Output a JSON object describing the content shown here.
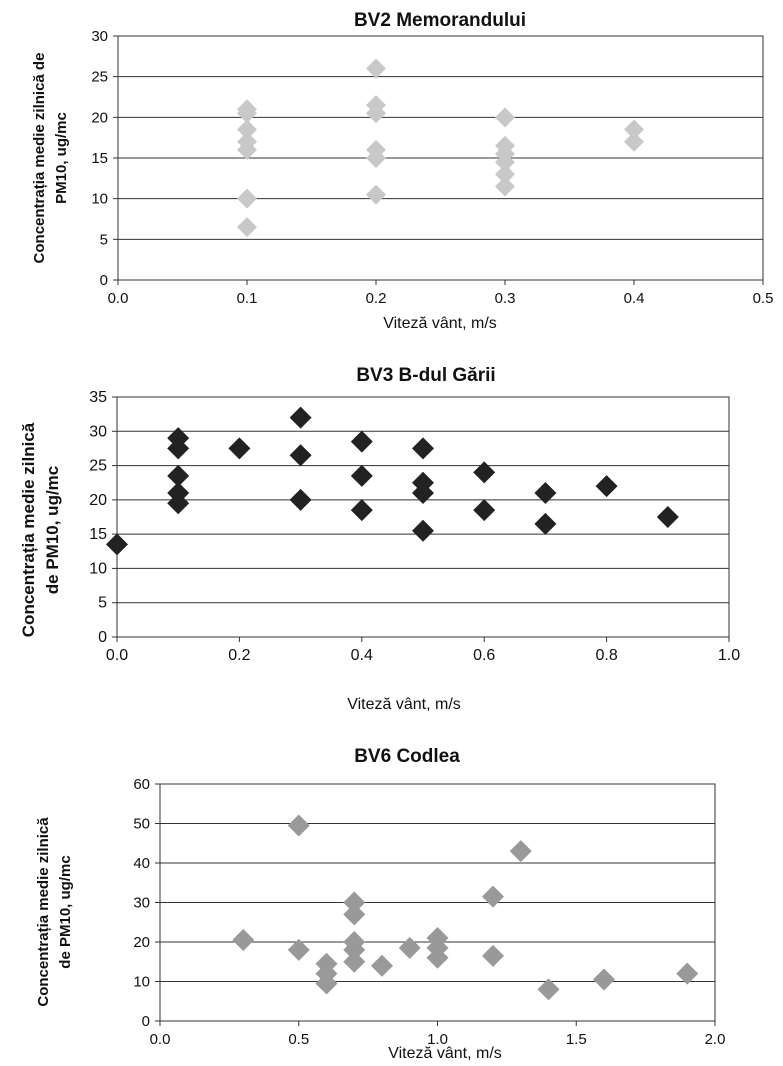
{
  "chart_data": [
    {
      "type": "scatter",
      "title": "BV2 Memorandului",
      "xlabel": "Viteză vânt, m/s",
      "ylabel": "Concentrația medie zilnică de PM10, ug/mc",
      "xlim": [
        0,
        0.5
      ],
      "ylim": [
        0,
        30
      ],
      "xticks": [
        "0.0",
        "0.1",
        "0.2",
        "0.3",
        "0.4",
        "0.5"
      ],
      "yticks": [
        "0",
        "5",
        "10",
        "15",
        "20",
        "25",
        "30"
      ],
      "grid": "horizontal",
      "marker_color": "#c8c8c8",
      "points": [
        [
          0.1,
          6.5
        ],
        [
          0.1,
          10
        ],
        [
          0.1,
          16
        ],
        [
          0.1,
          17
        ],
        [
          0.1,
          18.5
        ],
        [
          0.1,
          20.5
        ],
        [
          0.1,
          21
        ],
        [
          0.2,
          10.5
        ],
        [
          0.2,
          15
        ],
        [
          0.2,
          16
        ],
        [
          0.2,
          20.5
        ],
        [
          0.2,
          21.5
        ],
        [
          0.2,
          26
        ],
        [
          0.3,
          11.5
        ],
        [
          0.3,
          13
        ],
        [
          0.3,
          14.5
        ],
        [
          0.3,
          15.5
        ],
        [
          0.3,
          16.5
        ],
        [
          0.3,
          20
        ],
        [
          0.4,
          17
        ],
        [
          0.4,
          18.5
        ]
      ]
    },
    {
      "type": "scatter",
      "title": "BV3 B-dul Gării",
      "xlabel": "Viteză vânt,  m/s",
      "ylabel": "Concentrația medie zilnică de PM10, ug/mc",
      "xlim": [
        0,
        1.0
      ],
      "ylim": [
        0,
        35
      ],
      "xticks": [
        "0.0",
        "0.2",
        "0.4",
        "0.6",
        "0.8",
        "1.0"
      ],
      "yticks": [
        "0",
        "5",
        "10",
        "15",
        "20",
        "25",
        "30",
        "35"
      ],
      "grid": "horizontal",
      "marker_color": "#222222",
      "points": [
        [
          0.0,
          13.5
        ],
        [
          0.1,
          19.5
        ],
        [
          0.1,
          21
        ],
        [
          0.1,
          23.5
        ],
        [
          0.1,
          27.5
        ],
        [
          0.1,
          29
        ],
        [
          0.2,
          27.5
        ],
        [
          0.3,
          20
        ],
        [
          0.3,
          26.5
        ],
        [
          0.3,
          32
        ],
        [
          0.4,
          18.5
        ],
        [
          0.4,
          23.5
        ],
        [
          0.4,
          28.5
        ],
        [
          0.5,
          15.5
        ],
        [
          0.5,
          21
        ],
        [
          0.5,
          22.5
        ],
        [
          0.5,
          27.5
        ],
        [
          0.6,
          18.5
        ],
        [
          0.6,
          24
        ],
        [
          0.7,
          16.5
        ],
        [
          0.7,
          21
        ],
        [
          0.8,
          22
        ],
        [
          0.9,
          17.5
        ]
      ]
    },
    {
      "type": "scatter",
      "title": "BV6 Codlea",
      "xlabel": "Viteză vânt,  m/s",
      "ylabel": "Concentrația medie zilnică de PM10, ug/mc",
      "xlim": [
        0,
        2.0
      ],
      "ylim": [
        0,
        60
      ],
      "xticks": [
        "0.0",
        "0.5",
        "1.0",
        "1.5",
        "2.0"
      ],
      "yticks": [
        "0",
        "10",
        "20",
        "30",
        "40",
        "50",
        "60"
      ],
      "grid": "horizontal",
      "marker_color": "#999999",
      "points": [
        [
          0.3,
          20.5
        ],
        [
          0.5,
          18
        ],
        [
          0.5,
          49.5
        ],
        [
          0.6,
          9.5
        ],
        [
          0.6,
          12
        ],
        [
          0.6,
          14.5
        ],
        [
          0.7,
          15
        ],
        [
          0.7,
          18
        ],
        [
          0.7,
          20
        ],
        [
          0.7,
          27
        ],
        [
          0.7,
          30
        ],
        [
          0.8,
          14
        ],
        [
          0.9,
          18.5
        ],
        [
          1.0,
          16
        ],
        [
          1.0,
          18.5
        ],
        [
          1.0,
          21
        ],
        [
          1.2,
          16.5
        ],
        [
          1.2,
          31.5
        ],
        [
          1.3,
          43
        ],
        [
          1.4,
          8
        ],
        [
          1.6,
          10.5
        ],
        [
          1.9,
          12
        ]
      ]
    }
  ]
}
